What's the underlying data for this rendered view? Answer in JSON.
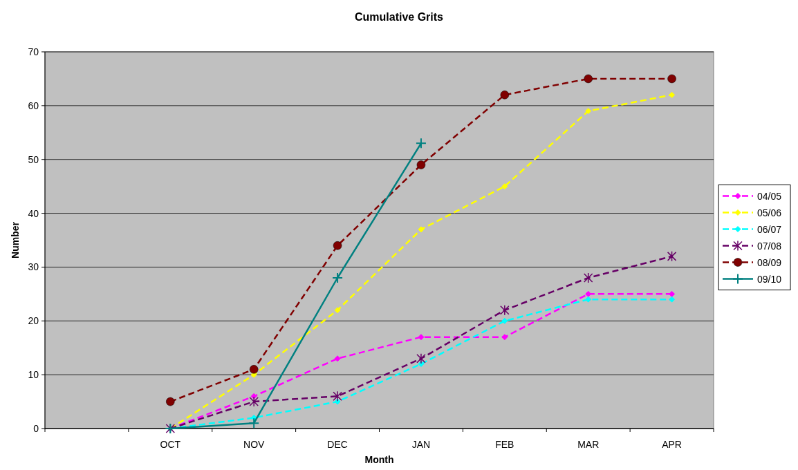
{
  "chart_data": {
    "type": "line",
    "title": "Cumulative Grits",
    "xlabel": "Month",
    "ylabel": "Number",
    "categories": [
      null,
      "OCT",
      "NOV",
      "DEC",
      "JAN",
      "FEB",
      "MAR",
      "APR"
    ],
    "ylim": [
      0,
      70
    ],
    "yticks": [
      0,
      10,
      20,
      30,
      40,
      50,
      60,
      70
    ],
    "grid": "y",
    "legend": "right",
    "series": [
      {
        "name": "04/05",
        "color": "#ff00ff",
        "marker": "diamond",
        "line_style": "dashed",
        "values": [
          null,
          0,
          6,
          13,
          17,
          17,
          25,
          25
        ]
      },
      {
        "name": "05/06",
        "color": "#ffff00",
        "marker": "diamond",
        "line_style": "dashed",
        "values": [
          null,
          0,
          10,
          22,
          37,
          45,
          59,
          62
        ]
      },
      {
        "name": "06/07",
        "color": "#00ffff",
        "marker": "diamond",
        "line_style": "dashed",
        "values": [
          null,
          0,
          2,
          5,
          12,
          20,
          24,
          24
        ]
      },
      {
        "name": "07/08",
        "color": "#660066",
        "marker": "cross",
        "line_style": "dashed",
        "values": [
          null,
          0,
          5,
          6,
          13,
          22,
          28,
          32
        ]
      },
      {
        "name": "08/09",
        "color": "#800000",
        "marker": "circle",
        "line_style": "dashed",
        "values": [
          null,
          5,
          11,
          34,
          49,
          62,
          65,
          65
        ]
      },
      {
        "name": "09/10",
        "color": "#008080",
        "marker": "plus",
        "line_style": "solid",
        "values": [
          null,
          0,
          1,
          28,
          53,
          null,
          null,
          null
        ]
      }
    ]
  }
}
